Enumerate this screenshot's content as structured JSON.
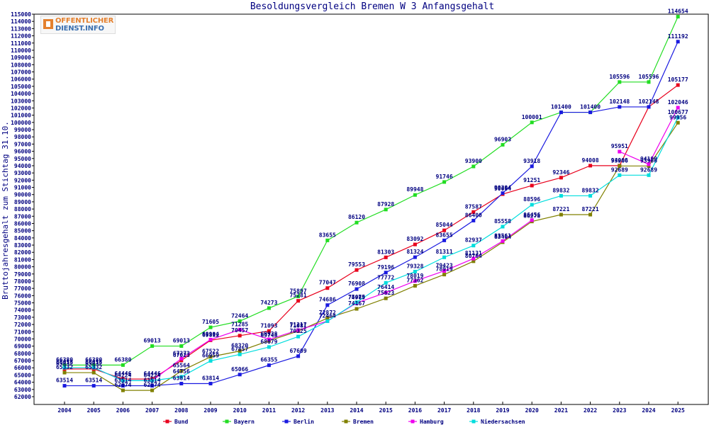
{
  "chart_data": {
    "type": "line",
    "title": "Besoldungsvergleich Bremen W 3 Anfangsgehalt",
    "ylabel": "Bruttojahresgehalt zum Stichtag 31.10.",
    "xlabel": "",
    "ylim": [
      62000,
      115000
    ],
    "ytick_step": 1000,
    "grid": false,
    "legend_position": "bottom",
    "categories": [
      "2004",
      "2005",
      "2006",
      "2007",
      "2008",
      "2009",
      "2010",
      "2011",
      "2012",
      "2013",
      "2014",
      "2015",
      "2016",
      "2017",
      "2018",
      "2019",
      "2020",
      "2021",
      "2022",
      "2023",
      "2024",
      "2025"
    ],
    "series": [
      {
        "name": "Bund",
        "color": "#e8001c",
        "values": [
          65832,
          65832,
          64446,
          64446,
          67023,
          69812,
          70457,
          71093,
          75281,
          77047,
          79553,
          81303,
          83092,
          85044,
          87587,
          90064,
          91251,
          92346,
          94008,
          94008,
          102148,
          105177
        ]
      },
      {
        "name": "Bayern",
        "color": "#22dd22",
        "values": [
          66380,
          66380,
          66380,
          69013,
          69013,
          71605,
          72464,
          74273,
          75897,
          83655,
          86120,
          87928,
          89948,
          91746,
          93900,
          96903,
          100001,
          101400,
          101400,
          105596,
          105596,
          114654
        ]
      },
      {
        "name": "Berlin",
        "color": "#1a1ae0",
        "values": [
          63514,
          63514,
          63514,
          63514,
          63814,
          63814,
          65066,
          66355,
          67609,
          74686,
          76908,
          79196,
          81324,
          83655,
          86400,
          90204,
          93918,
          101400,
          101400,
          102148,
          102148,
          111192
        ]
      },
      {
        "name": "Bremen",
        "color": "#808000",
        "values": [
          65332,
          65332,
          62874,
          62874,
          65564,
          67522,
          68320,
          69748,
          71081,
          72872,
          74167,
          75623,
          77362,
          78919,
          80764,
          83404,
          86278,
          87221,
          87221,
          93966,
          93966,
          99956
        ]
      },
      {
        "name": "Hamburg",
        "color": "#ee00ee",
        "values": [
          66018,
          66018,
          64224,
          64224,
          67273,
          69904,
          71285,
          69938,
          71217,
          72464,
          74989,
          76414,
          78019,
          79423,
          81131,
          83561,
          86456,
          null,
          null,
          95951,
          94199,
          102046
        ]
      },
      {
        "name": "Niedersachsen",
        "color": "#00dddd",
        "values": [
          66018,
          66018,
          64224,
          64224,
          64756,
          66959,
          67857,
          68879,
          70325,
          72464,
          75075,
          77772,
          79328,
          81311,
          82937,
          85558,
          88596,
          89832,
          89832,
          92689,
          92689,
          100677
        ]
      }
    ]
  },
  "logo": {
    "line1": "OFFENTLICHER",
    "line2": "DIENST.INFO"
  }
}
